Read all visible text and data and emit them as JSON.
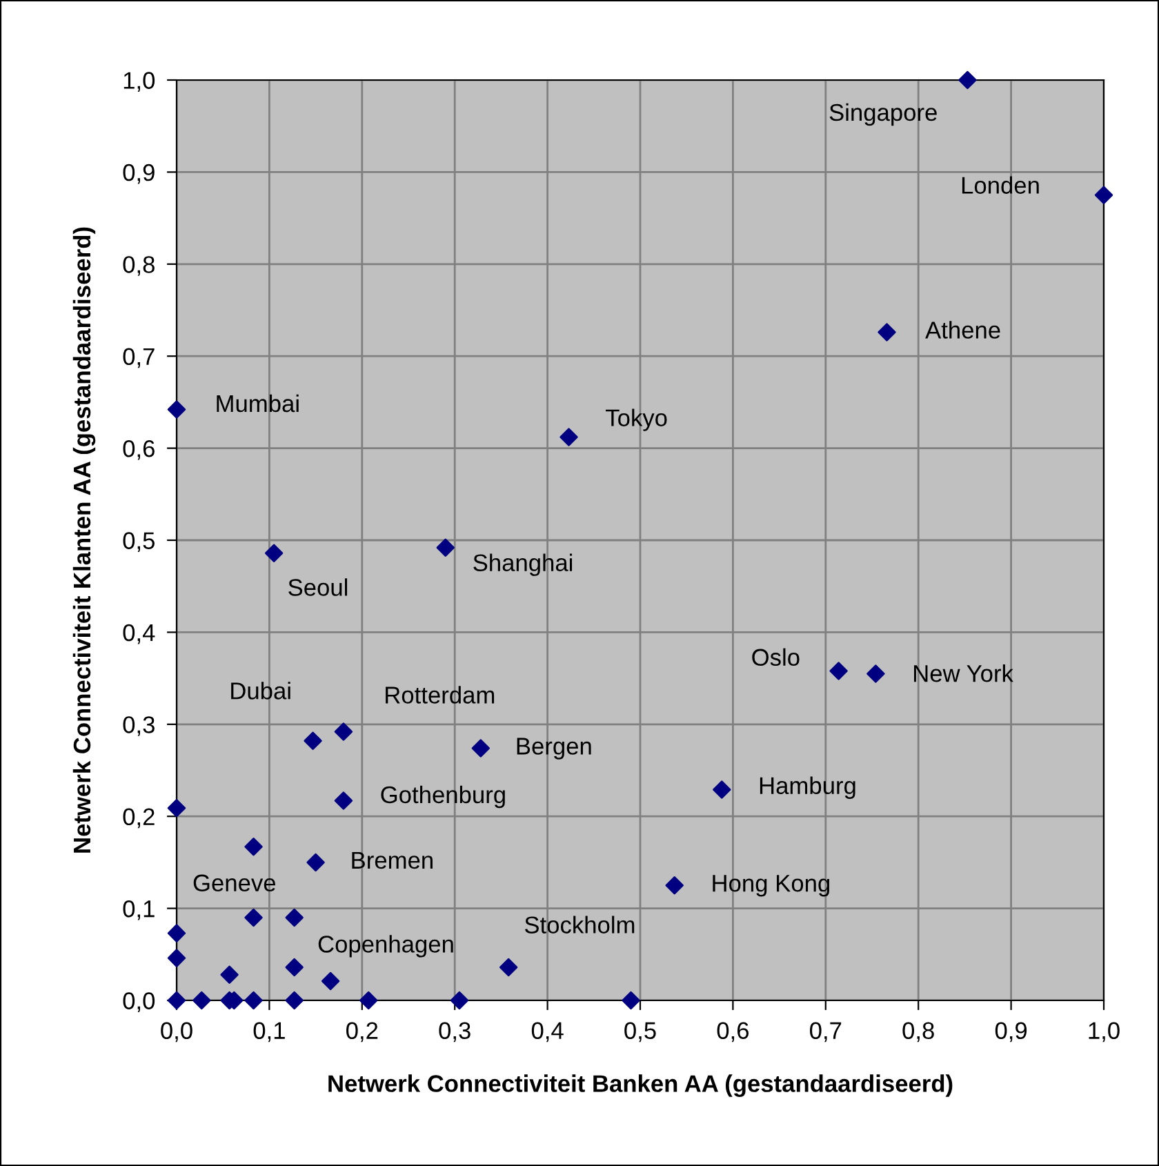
{
  "chart_data": {
    "type": "scatter",
    "xlabel": "Netwerk Connectiviteit Banken AA (gestandaardiseerd)",
    "ylabel": "Netwerk Connectiviteit Klanten AA (gestandaardiseerd)",
    "xlim": [
      0,
      1
    ],
    "ylim": [
      0,
      1
    ],
    "xticks": [
      {
        "value": 0,
        "label": "0,0"
      },
      {
        "value": 0.1,
        "label": "0,1"
      },
      {
        "value": 0.2,
        "label": "0,2"
      },
      {
        "value": 0.3,
        "label": "0,3"
      },
      {
        "value": 0.4,
        "label": "0,4"
      },
      {
        "value": 0.5,
        "label": "0,5"
      },
      {
        "value": 0.6,
        "label": "0,6"
      },
      {
        "value": 0.7,
        "label": "0,7"
      },
      {
        "value": 0.8,
        "label": "0,8"
      },
      {
        "value": 0.9,
        "label": "0,9"
      },
      {
        "value": 1,
        "label": "1,0"
      }
    ],
    "yticks": [
      {
        "value": 0,
        "label": "0,0"
      },
      {
        "value": 0.1,
        "label": "0,1"
      },
      {
        "value": 0.2,
        "label": "0,2"
      },
      {
        "value": 0.3,
        "label": "0,3"
      },
      {
        "value": 0.4,
        "label": "0,4"
      },
      {
        "value": 0.5,
        "label": "0,5"
      },
      {
        "value": 0.6,
        "label": "0,6"
      },
      {
        "value": 0.7,
        "label": "0,7"
      },
      {
        "value": 0.8,
        "label": "0,8"
      },
      {
        "value": 0.9,
        "label": "0,9"
      },
      {
        "value": 1,
        "label": "1,0"
      }
    ],
    "grid": true,
    "marker": "diamond",
    "series": [
      {
        "color": "#000080",
        "x": [
          0.853,
          1.0,
          0.766,
          0.423,
          0.0,
          0.105,
          0.29,
          0.147,
          0.18,
          0.328,
          0.714,
          0.754,
          0.18,
          0.588,
          0.083,
          0.15,
          0.537,
          0.127,
          0.358,
          0.0,
          0.083,
          0.127,
          0.0,
          0.0,
          0.057,
          0.166,
          0.0,
          0.027,
          0.057,
          0.062,
          0.083,
          0.127,
          0.207,
          0.305,
          0.49
        ],
        "values": [
          1.0,
          0.875,
          0.726,
          0.612,
          0.642,
          0.486,
          0.492,
          0.282,
          0.292,
          0.274,
          0.358,
          0.355,
          0.217,
          0.229,
          0.167,
          0.15,
          0.125,
          0.036,
          0.036,
          0.209,
          0.09,
          0.09,
          0.073,
          0.046,
          0.028,
          0.021,
          0.0,
          0.0,
          0.0,
          0.0,
          0.0,
          0.0,
          0.0,
          0.0,
          0.0
        ]
      }
    ],
    "annotations": [
      {
        "text": "Singapore",
        "x": 0.853,
        "y": 1.0
      },
      {
        "text": "Londen",
        "x": 1.0,
        "y": 0.875
      },
      {
        "text": "Athene",
        "x": 0.766,
        "y": 0.726
      },
      {
        "text": "Tokyo",
        "x": 0.423,
        "y": 0.612
      },
      {
        "text": "Mumbai",
        "x": 0.0,
        "y": 0.642
      },
      {
        "text": "Seoul",
        "x": 0.105,
        "y": 0.486
      },
      {
        "text": "Shanghai",
        "x": 0.29,
        "y": 0.492
      },
      {
        "text": "Dubai",
        "x": 0.147,
        "y": 0.282
      },
      {
        "text": "Rotterdam",
        "x": 0.18,
        "y": 0.292
      },
      {
        "text": "Bergen",
        "x": 0.328,
        "y": 0.274
      },
      {
        "text": "Oslo",
        "x": 0.714,
        "y": 0.358
      },
      {
        "text": "New York",
        "x": 0.754,
        "y": 0.355
      },
      {
        "text": "Gothenburg",
        "x": 0.18,
        "y": 0.217
      },
      {
        "text": "Hamburg",
        "x": 0.588,
        "y": 0.229
      },
      {
        "text": "Geneve",
        "x": 0.083,
        "y": 0.167
      },
      {
        "text": "Bremen",
        "x": 0.15,
        "y": 0.15
      },
      {
        "text": "Hong Kong",
        "x": 0.537,
        "y": 0.125
      },
      {
        "text": "Copenhagen",
        "x": 0.127,
        "y": 0.036
      },
      {
        "text": "Stockholm",
        "x": 0.358,
        "y": 0.036
      }
    ]
  }
}
